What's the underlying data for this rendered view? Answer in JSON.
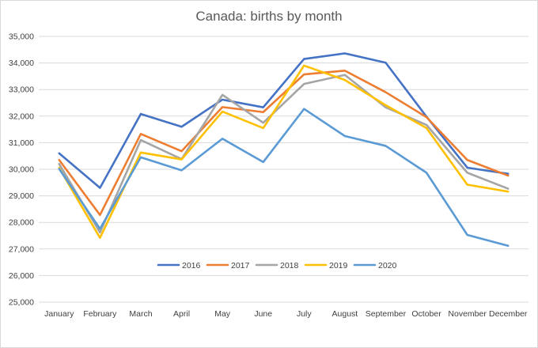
{
  "chart_data": {
    "type": "line",
    "title": "Canada: births by month",
    "xlabel": "",
    "ylabel": "",
    "categories": [
      "January",
      "February",
      "March",
      "April",
      "May",
      "June",
      "July",
      "August",
      "September",
      "October",
      "November",
      "December"
    ],
    "ylim": [
      25000,
      35000
    ],
    "yticks": [
      25000,
      26000,
      27000,
      28000,
      29000,
      30000,
      31000,
      32000,
      33000,
      34000,
      35000
    ],
    "ytick_labels": [
      "25,000",
      "26,000",
      "27,000",
      "28,000",
      "29,000",
      "30,000",
      "31,000",
      "32,000",
      "33,000",
      "34,000",
      "35,000"
    ],
    "grid": true,
    "legend_position": "bottom-inside",
    "series": [
      {
        "name": "2016",
        "color": "#4472C4",
        "values": [
          30600,
          29300,
          32080,
          31600,
          32620,
          32330,
          34150,
          34360,
          34010,
          31980,
          30060,
          29830
        ]
      },
      {
        "name": "2017",
        "color": "#ED7D31",
        "values": [
          30350,
          28280,
          31330,
          30680,
          32340,
          32150,
          33570,
          33710,
          32900,
          31960,
          30350,
          29760
        ]
      },
      {
        "name": "2018",
        "color": "#A5A5A5",
        "values": [
          30200,
          27620,
          31100,
          30380,
          32800,
          31750,
          33210,
          33550,
          32330,
          31670,
          29870,
          29270
        ]
      },
      {
        "name": "2019",
        "color": "#FFC000",
        "values": [
          30050,
          27420,
          30630,
          30370,
          32170,
          31550,
          33900,
          33360,
          32410,
          31550,
          29420,
          29160
        ]
      },
      {
        "name": "2020",
        "color": "#5B9BD5",
        "values": [
          30010,
          27760,
          30450,
          29960,
          31150,
          30270,
          32270,
          31250,
          30880,
          29870,
          27530,
          27120
        ]
      }
    ]
  }
}
